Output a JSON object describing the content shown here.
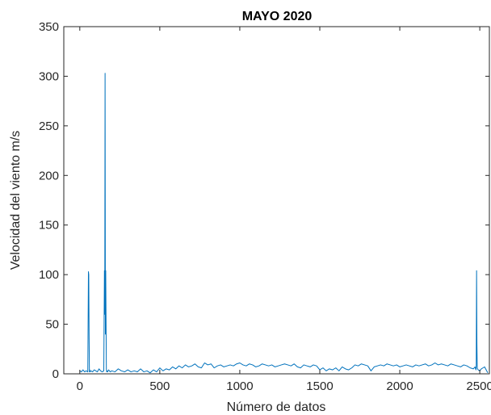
{
  "chart_data": {
    "type": "line",
    "title": "MAYO 2020",
    "xlabel": "Número de datos",
    "ylabel": "Velocidad del viento m/s",
    "xlim": [
      -100,
      2560
    ],
    "ylim": [
      0,
      350
    ],
    "xticks": [
      0,
      500,
      1000,
      1500,
      2000,
      2500
    ],
    "yticks": [
      0,
      50,
      100,
      150,
      200,
      250,
      300,
      350
    ],
    "grid": false,
    "box": true,
    "series": [
      {
        "color": "#0072BD",
        "x": [
          0,
          10,
          20,
          30,
          40,
          50,
          52,
          54,
          56,
          58,
          60,
          62,
          64,
          70,
          80,
          90,
          100,
          110,
          120,
          130,
          140,
          150,
          154,
          156,
          158,
          160,
          162,
          166,
          168,
          170,
          174,
          180,
          190,
          200,
          220,
          240,
          260,
          280,
          300,
          320,
          340,
          360,
          380,
          400,
          420,
          440,
          460,
          480,
          500,
          520,
          540,
          560,
          580,
          600,
          620,
          640,
          660,
          680,
          700,
          720,
          740,
          760,
          780,
          800,
          820,
          840,
          860,
          880,
          900,
          920,
          940,
          960,
          980,
          1000,
          1020,
          1040,
          1060,
          1080,
          1100,
          1120,
          1140,
          1160,
          1180,
          1200,
          1220,
          1240,
          1260,
          1280,
          1300,
          1320,
          1340,
          1360,
          1380,
          1400,
          1420,
          1440,
          1460,
          1480,
          1500,
          1520,
          1540,
          1560,
          1580,
          1600,
          1620,
          1640,
          1660,
          1680,
          1700,
          1720,
          1740,
          1760,
          1780,
          1800,
          1820,
          1840,
          1860,
          1880,
          1900,
          1920,
          1940,
          1960,
          1980,
          2000,
          2020,
          2040,
          2060,
          2080,
          2100,
          2120,
          2140,
          2160,
          2180,
          2200,
          2220,
          2240,
          2260,
          2280,
          2300,
          2320,
          2340,
          2360,
          2380,
          2400,
          2420,
          2440,
          2460,
          2470,
          2476,
          2478,
          2480,
          2482,
          2484,
          2486,
          2490,
          2500,
          2510,
          2520,
          2530,
          2540,
          2550
        ],
        "y": [
          3,
          2,
          4,
          2,
          3,
          2,
          50,
          103,
          100,
          40,
          2,
          4,
          2,
          3,
          2,
          4,
          3,
          2,
          5,
          3,
          2,
          3,
          104,
          60,
          303,
          40,
          104,
          5,
          2,
          3,
          2,
          4,
          2,
          3,
          2,
          5,
          3,
          2,
          4,
          2,
          3,
          2,
          5,
          2,
          3,
          1,
          4,
          2,
          6,
          3,
          5,
          4,
          7,
          5,
          8,
          6,
          9,
          7,
          8,
          10,
          7,
          6,
          11,
          9,
          10,
          6,
          8,
          9,
          7,
          8,
          9,
          8,
          10,
          11,
          9,
          8,
          10,
          9,
          7,
          8,
          10,
          9,
          8,
          9,
          7,
          8,
          9,
          10,
          9,
          8,
          10,
          7,
          6,
          9,
          8,
          7,
          9,
          8,
          4,
          6,
          3,
          5,
          4,
          6,
          3,
          7,
          5,
          4,
          6,
          9,
          8,
          10,
          9,
          8,
          3,
          7,
          8,
          9,
          8,
          10,
          9,
          8,
          9,
          7,
          8,
          9,
          8,
          7,
          9,
          8,
          9,
          10,
          8,
          9,
          11,
          9,
          10,
          9,
          8,
          10,
          9,
          8,
          7,
          9,
          8,
          6,
          5,
          7,
          4,
          8,
          104,
          30,
          6,
          5,
          4,
          3,
          5,
          6,
          7,
          4,
          1
        ]
      }
    ]
  }
}
